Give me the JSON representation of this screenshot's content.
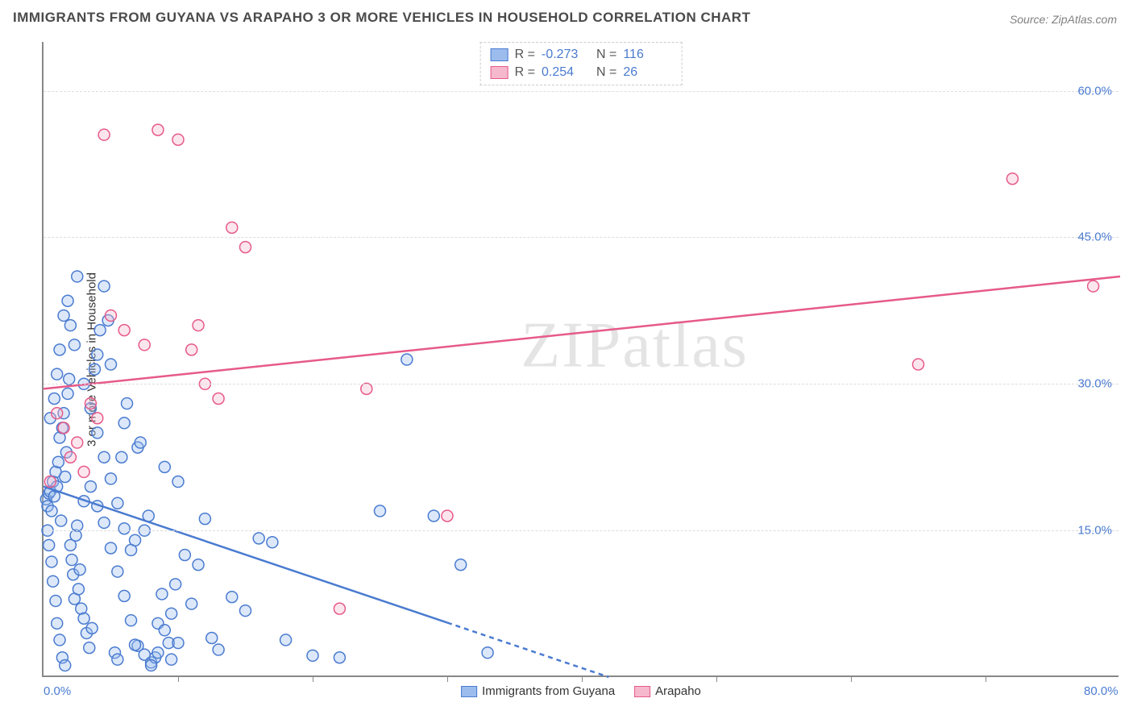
{
  "title": "IMMIGRANTS FROM GUYANA VS ARAPAHO 3 OR MORE VEHICLES IN HOUSEHOLD CORRELATION CHART",
  "title_fontsize": 17,
  "title_color": "#4a4a4a",
  "source_prefix": "Source: ",
  "source_link": "ZipAtlas.com",
  "source_color": "#808080",
  "ylabel": "3 or more Vehicles in Household",
  "watermark": "ZIPatlas",
  "chart": {
    "type": "scatter",
    "background_color": "#ffffff",
    "grid_color": "#dddddd",
    "axis_color": "#888888",
    "xlim": [
      0,
      80
    ],
    "ylim": [
      0,
      65
    ],
    "xticks": [
      0,
      80
    ],
    "xtick_labels": [
      "0.0%",
      "80.0%"
    ],
    "xtick_minor": [
      10,
      20,
      30,
      40,
      50,
      60,
      70
    ],
    "yticks": [
      15,
      30,
      45,
      60
    ],
    "ytick_labels": [
      "15.0%",
      "30.0%",
      "45.0%",
      "60.0%"
    ],
    "tick_label_color": "#4a7bd0",
    "marker_radius": 7,
    "marker_stroke_width": 1.5,
    "marker_fill_opacity": 0.35,
    "trendline_width": 2.5,
    "series": [
      {
        "name": "Immigrants from Guyana",
        "color_stroke": "#4a7bd0",
        "color_fill": "#9cbced",
        "R": "-0.273",
        "N": "116",
        "trend": {
          "x1": 0,
          "y1": 19.5,
          "x2": 42,
          "y2": 0,
          "dash_after_x": 30
        },
        "points": [
          [
            0.2,
            18.2
          ],
          [
            0.3,
            17.5
          ],
          [
            0.4,
            18.8
          ],
          [
            0.5,
            19.0
          ],
          [
            0.6,
            17.0
          ],
          [
            0.7,
            20.0
          ],
          [
            0.8,
            18.5
          ],
          [
            0.9,
            21.0
          ],
          [
            1.0,
            19.5
          ],
          [
            1.1,
            22.0
          ],
          [
            1.2,
            24.5
          ],
          [
            1.3,
            16.0
          ],
          [
            1.4,
            25.5
          ],
          [
            1.5,
            27.0
          ],
          [
            1.6,
            20.5
          ],
          [
            1.7,
            23.0
          ],
          [
            1.8,
            29.0
          ],
          [
            1.9,
            30.5
          ],
          [
            2.0,
            13.5
          ],
          [
            2.1,
            12.0
          ],
          [
            2.2,
            10.5
          ],
          [
            2.3,
            8.0
          ],
          [
            2.4,
            14.5
          ],
          [
            2.5,
            15.5
          ],
          [
            2.6,
            9.0
          ],
          [
            2.7,
            11.0
          ],
          [
            2.8,
            7.0
          ],
          [
            3.0,
            6.0
          ],
          [
            3.2,
            4.5
          ],
          [
            3.4,
            3.0
          ],
          [
            3.6,
            5.0
          ],
          [
            3.8,
            31.5
          ],
          [
            4.0,
            33.0
          ],
          [
            4.2,
            35.5
          ],
          [
            4.5,
            40.0
          ],
          [
            4.8,
            36.5
          ],
          [
            5.0,
            32.0
          ],
          [
            5.3,
            2.5
          ],
          [
            5.5,
            1.8
          ],
          [
            5.8,
            22.5
          ],
          [
            6.0,
            26.0
          ],
          [
            6.2,
            28.0
          ],
          [
            6.5,
            13.0
          ],
          [
            6.8,
            14.0
          ],
          [
            7.0,
            23.5
          ],
          [
            7.2,
            24.0
          ],
          [
            7.5,
            15.0
          ],
          [
            7.8,
            16.5
          ],
          [
            8.0,
            1.5
          ],
          [
            8.3,
            2.0
          ],
          [
            8.5,
            5.5
          ],
          [
            8.8,
            8.5
          ],
          [
            9.0,
            21.5
          ],
          [
            9.3,
            3.5
          ],
          [
            9.5,
            6.5
          ],
          [
            9.8,
            9.5
          ],
          [
            10.0,
            20.0
          ],
          [
            10.5,
            12.5
          ],
          [
            11.0,
            7.5
          ],
          [
            11.5,
            11.5
          ],
          [
            12.0,
            16.2
          ],
          [
            12.5,
            4.0
          ],
          [
            13.0,
            2.8
          ],
          [
            14.0,
            8.2
          ],
          [
            15.0,
            6.8
          ],
          [
            16.0,
            14.2
          ],
          [
            17.0,
            13.8
          ],
          [
            18.0,
            3.8
          ],
          [
            20.0,
            2.2
          ],
          [
            22.0,
            2.0
          ],
          [
            25.0,
            17.0
          ],
          [
            27.0,
            32.5
          ],
          [
            29.0,
            16.5
          ],
          [
            31.0,
            11.5
          ],
          [
            33.0,
            2.5
          ],
          [
            0.5,
            26.5
          ],
          [
            0.8,
            28.5
          ],
          [
            1.0,
            31.0
          ],
          [
            1.2,
            33.5
          ],
          [
            1.5,
            37.0
          ],
          [
            1.8,
            38.5
          ],
          [
            2.0,
            36.0
          ],
          [
            2.3,
            34.0
          ],
          [
            0.3,
            15.0
          ],
          [
            0.4,
            13.5
          ],
          [
            0.6,
            11.8
          ],
          [
            0.7,
            9.8
          ],
          [
            0.9,
            7.8
          ],
          [
            1.0,
            5.5
          ],
          [
            1.2,
            3.8
          ],
          [
            1.4,
            2.0
          ],
          [
            1.6,
            1.2
          ],
          [
            3.0,
            18.0
          ],
          [
            3.5,
            19.5
          ],
          [
            4.0,
            17.5
          ],
          [
            4.5,
            15.8
          ],
          [
            5.0,
            13.2
          ],
          [
            5.5,
            10.8
          ],
          [
            6.0,
            8.3
          ],
          [
            6.5,
            5.8
          ],
          [
            7.0,
            3.2
          ],
          [
            2.5,
            41.0
          ],
          [
            3.0,
            30.0
          ],
          [
            3.5,
            27.5
          ],
          [
            4.0,
            25.0
          ],
          [
            4.5,
            22.5
          ],
          [
            5.0,
            20.3
          ],
          [
            5.5,
            17.8
          ],
          [
            6.0,
            15.2
          ],
          [
            6.8,
            3.3
          ],
          [
            7.5,
            2.3
          ],
          [
            8.0,
            1.2
          ],
          [
            8.5,
            2.5
          ],
          [
            9.0,
            4.8
          ],
          [
            9.5,
            1.8
          ],
          [
            10.0,
            3.5
          ]
        ]
      },
      {
        "name": "Arapaho",
        "color_stroke": "#e65a8a",
        "color_fill": "#f5b8cc",
        "R": "0.254",
        "N": "26",
        "trend": {
          "x1": 0,
          "y1": 29.5,
          "x2": 80,
          "y2": 41.0,
          "dash_after_x": 80
        },
        "points": [
          [
            0.5,
            20.0
          ],
          [
            1.0,
            27.0
          ],
          [
            1.5,
            25.5
          ],
          [
            2.0,
            22.5
          ],
          [
            2.5,
            24.0
          ],
          [
            3.0,
            21.0
          ],
          [
            3.5,
            28.0
          ],
          [
            4.0,
            26.5
          ],
          [
            5.0,
            37.0
          ],
          [
            6.0,
            35.5
          ],
          [
            7.5,
            34.0
          ],
          [
            8.5,
            56.0
          ],
          [
            10.0,
            55.0
          ],
          [
            11.0,
            33.5
          ],
          [
            11.5,
            36.0
          ],
          [
            12.0,
            30.0
          ],
          [
            13.0,
            28.5
          ],
          [
            14.0,
            46.0
          ],
          [
            15.0,
            44.0
          ],
          [
            24.0,
            29.5
          ],
          [
            22.0,
            7.0
          ],
          [
            30.0,
            16.5
          ],
          [
            65.0,
            32.0
          ],
          [
            72.0,
            51.0
          ],
          [
            78.0,
            40.0
          ],
          [
            4.5,
            55.5
          ]
        ]
      }
    ]
  }
}
